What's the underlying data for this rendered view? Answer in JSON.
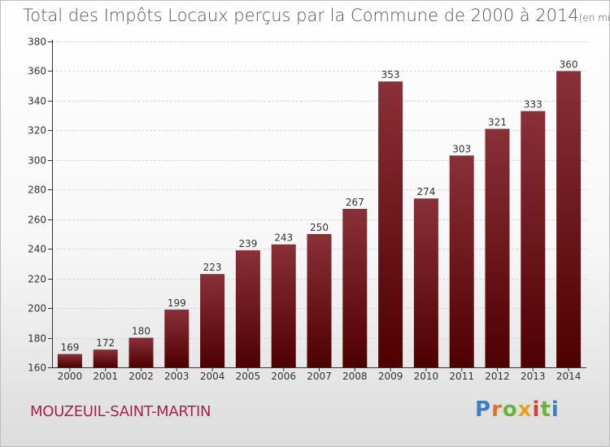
{
  "header": {
    "title": "Total des Impôts Locaux perçus par la Commune de 2000 à 2014",
    "unit": "(en milliers d'€)"
  },
  "footer": {
    "commune": "MOUZEUIL-SAINT-MARTIN",
    "brand": "Proxiti"
  },
  "colors": {
    "bar_top": "#8a3038",
    "bar_bottom": "#4e0000",
    "grid": "#d8d8d8",
    "axis": "#333333",
    "commune_text": "#a8234b"
  },
  "chart_data": {
    "type": "bar",
    "title": "Total des Impôts Locaux perçus par la Commune de 2000 à 2014",
    "xlabel": "",
    "ylabel": "en milliers d'€",
    "categories": [
      "2000",
      "2001",
      "2002",
      "2003",
      "2004",
      "2005",
      "2006",
      "2007",
      "2008",
      "2009",
      "2010",
      "2011",
      "2012",
      "2013",
      "2014"
    ],
    "values": [
      169,
      172,
      180,
      199,
      223,
      239,
      243,
      250,
      267,
      353,
      274,
      303,
      321,
      333,
      360
    ],
    "ylim": [
      160,
      380
    ],
    "yticks": [
      160,
      180,
      200,
      220,
      240,
      260,
      280,
      300,
      320,
      340,
      360,
      380
    ],
    "grid": true
  }
}
